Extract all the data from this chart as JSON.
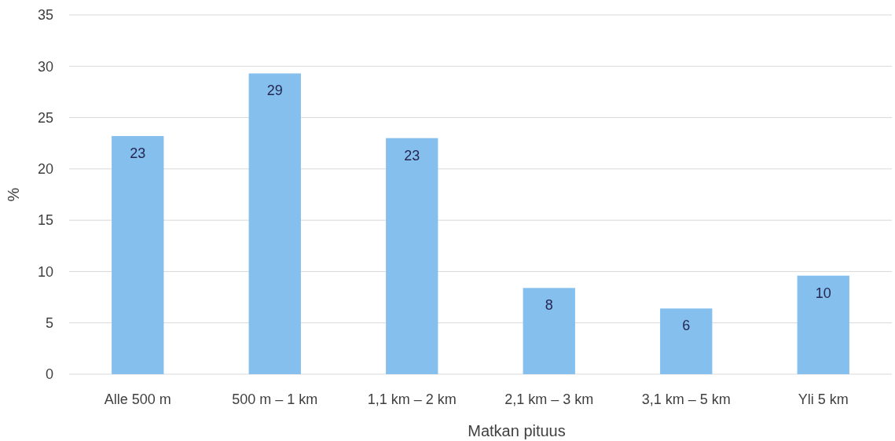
{
  "chart_data": {
    "type": "bar",
    "xlabel": "Matkan pituus",
    "ylabel": "%",
    "categories": [
      "Alle 500 m",
      "500 m – 1 km",
      "1,1 km – 2 km",
      "2,1 km – 3 km",
      "3,1 km – 5 km",
      "Yli 5 km"
    ],
    "values": [
      23.2,
      29.3,
      23.0,
      8.4,
      6.4,
      9.6
    ],
    "value_labels": [
      "23",
      "29",
      "23",
      "8",
      "6",
      "10"
    ],
    "color": "#85bfed",
    "ylim": [
      0,
      35
    ],
    "yticks": [
      0,
      5,
      10,
      15,
      20,
      25,
      30,
      35
    ],
    "grid": "y"
  }
}
